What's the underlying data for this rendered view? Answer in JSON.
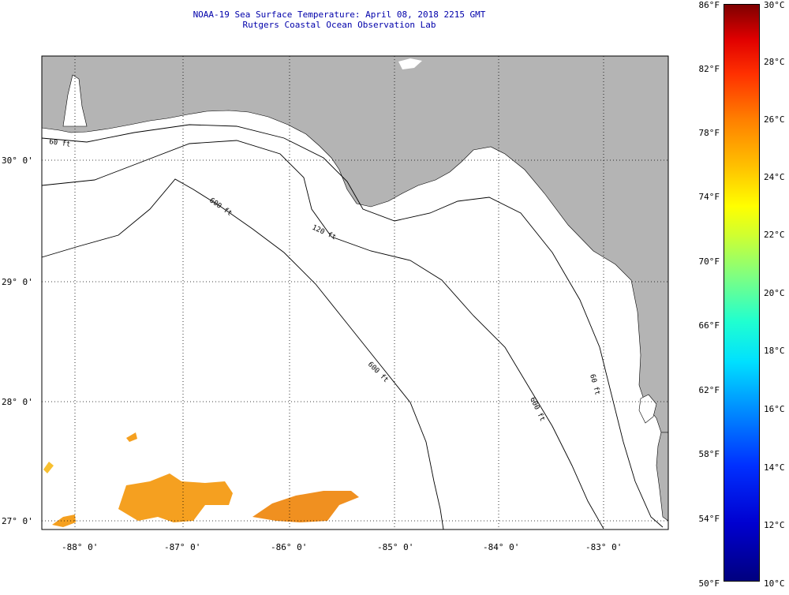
{
  "title": {
    "line1": "NOAA-19 Sea Surface Temperature:  April 08, 2018 2215 GMT",
    "line2": "Rutgers Coastal Ocean Observation Lab"
  },
  "map": {
    "lat_labels": [
      "30° 0'",
      "29° 0'",
      "28° 0'",
      "27° 0'"
    ],
    "lon_labels": [
      "-88° 0'",
      "-87° 0'",
      "-86° 0'",
      "-85° 0'",
      "-84° 0'",
      "-83° 0'"
    ],
    "contour_labels": [
      "60 ft",
      "120 ft",
      "600 ft",
      "600 ft",
      "600 ft",
      "60 ft"
    ],
    "land_color": "#b4b4b4",
    "sst_patch_color": "#f5a020"
  },
  "colorbar": {
    "fahrenheit": [
      "86°F",
      "82°F",
      "78°F",
      "74°F",
      "70°F",
      "66°F",
      "62°F",
      "58°F",
      "54°F",
      "50°F"
    ],
    "celsius": [
      "30°C",
      "28°C",
      "26°C",
      "24°C",
      "22°C",
      "20°C",
      "18°C",
      "16°C",
      "14°C",
      "12°C",
      "10°C"
    ],
    "min_f": 50,
    "max_f": 86,
    "min_c": 10,
    "max_c": 30
  }
}
